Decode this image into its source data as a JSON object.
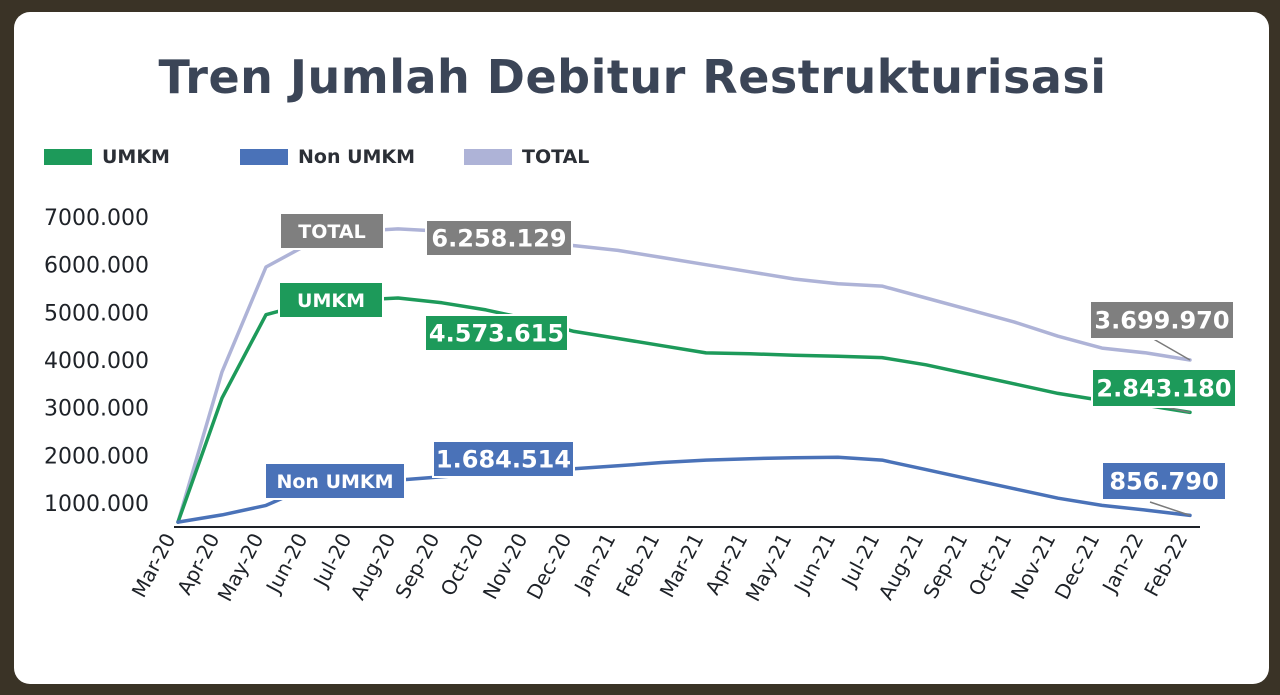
{
  "chart_data": {
    "type": "line",
    "title": "Tren Jumlah Debitur Restrukturisasi",
    "categories": [
      "Mar-20",
      "Apr-20",
      "May-20",
      "Jun-20",
      "Jul-20",
      "Aug-20",
      "Sep-20",
      "Oct-20",
      "Nov-20",
      "Dec-20",
      "Jan-21",
      "Feb-21",
      "Mar-21",
      "Apr-21",
      "May-21",
      "Jun-21",
      "Jul-21",
      "Aug-21",
      "Sep-21",
      "Oct-21",
      "Nov-21",
      "Dec-21",
      "Jan-22",
      "Feb-22"
    ],
    "yticks": [
      "7000.000",
      "6000.000",
      "5000.000",
      "4000.000",
      "3000.000",
      "2000.000",
      "1000.000"
    ],
    "ytick_values": [
      7000000,
      6000000,
      5000000,
      4000000,
      3000000,
      2000000,
      1000000
    ],
    "ylim": [
      600000,
      7200000
    ],
    "series": [
      {
        "name": "UMKM",
        "color": "#1d9a5a",
        "values": [
          600000,
          3200000,
          4950000,
          5200000,
          5250000,
          5300000,
          5200000,
          5050000,
          4850000,
          4600000,
          4450000,
          4300000,
          4150000,
          4130000,
          4100000,
          4080000,
          4050000,
          3900000,
          3700000,
          3500000,
          3300000,
          3150000,
          3050000,
          2900000
        ]
      },
      {
        "name": "Non UMKM",
        "color": "#4a72b8",
        "values": [
          600000,
          750000,
          950000,
          1350000,
          1420000,
          1480000,
          1550000,
          1620000,
          1684514,
          1720000,
          1780000,
          1850000,
          1900000,
          1930000,
          1950000,
          1960000,
          1900000,
          1700000,
          1500000,
          1300000,
          1100000,
          950000,
          850000,
          740000
        ]
      },
      {
        "name": "TOTAL",
        "color": "#aeb3d7",
        "values": [
          600000,
          3750000,
          5950000,
          6450000,
          6700000,
          6750000,
          6700000,
          6560000,
          6480000,
          6400000,
          6300000,
          6150000,
          6000000,
          5850000,
          5700000,
          5600000,
          5550000,
          5300000,
          5050000,
          4800000,
          4500000,
          4250000,
          4150000,
          4000000
        ]
      }
    ],
    "annotations": [
      {
        "text": "TOTAL",
        "color": "#7f7f7f"
      },
      {
        "text": "6.258.129",
        "color": "#7f7f7f"
      },
      {
        "text": "3.699.970",
        "color": "#7f7f7f"
      },
      {
        "text": "UMKM",
        "color": "#1d9a5a"
      },
      {
        "text": "4.573.615",
        "color": "#1d9a5a"
      },
      {
        "text": "2.843.180",
        "color": "#1d9a5a"
      },
      {
        "text": "Non UMKM",
        "color": "#4a72b8"
      },
      {
        "text": "1.684.514",
        "color": "#4a72b8"
      },
      {
        "text": "856.790",
        "color": "#4a72b8"
      }
    ],
    "legend": [
      {
        "label": "UMKM",
        "color": "#1d9a5a"
      },
      {
        "label": "Non UMKM",
        "color": "#4a72b8"
      },
      {
        "label": "TOTAL",
        "color": "#aeb3d7"
      }
    ]
  }
}
